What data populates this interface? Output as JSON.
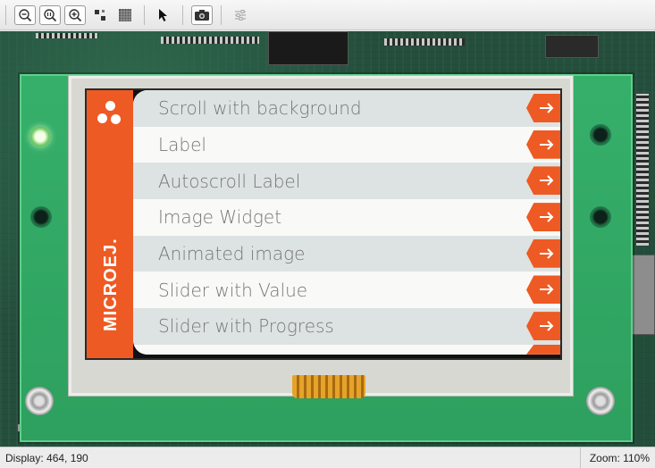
{
  "toolbar": {
    "buttons": [
      {
        "name": "zoom-out-icon"
      },
      {
        "name": "zoom-reset-icon"
      },
      {
        "name": "zoom-in-icon"
      },
      {
        "name": "fit-view-icon"
      },
      {
        "name": "pixel-grid-icon"
      },
      {
        "name": "pointer-icon"
      },
      {
        "name": "camera-icon"
      },
      {
        "name": "settings-sliders-icon"
      }
    ]
  },
  "device": {
    "brand": "MICROEJ.",
    "accent_color": "#ee5a24",
    "menu": {
      "items": [
        {
          "label": "Scroll with background"
        },
        {
          "label": "Label"
        },
        {
          "label": "Autoscroll Label"
        },
        {
          "label": "Image Widget"
        },
        {
          "label": "Animated image"
        },
        {
          "label": "Slider with Value"
        },
        {
          "label": "Slider with Progress"
        }
      ]
    }
  },
  "status": {
    "display_label": "Display: 464, 190",
    "zoom_label": "Zoom: 110%"
  }
}
